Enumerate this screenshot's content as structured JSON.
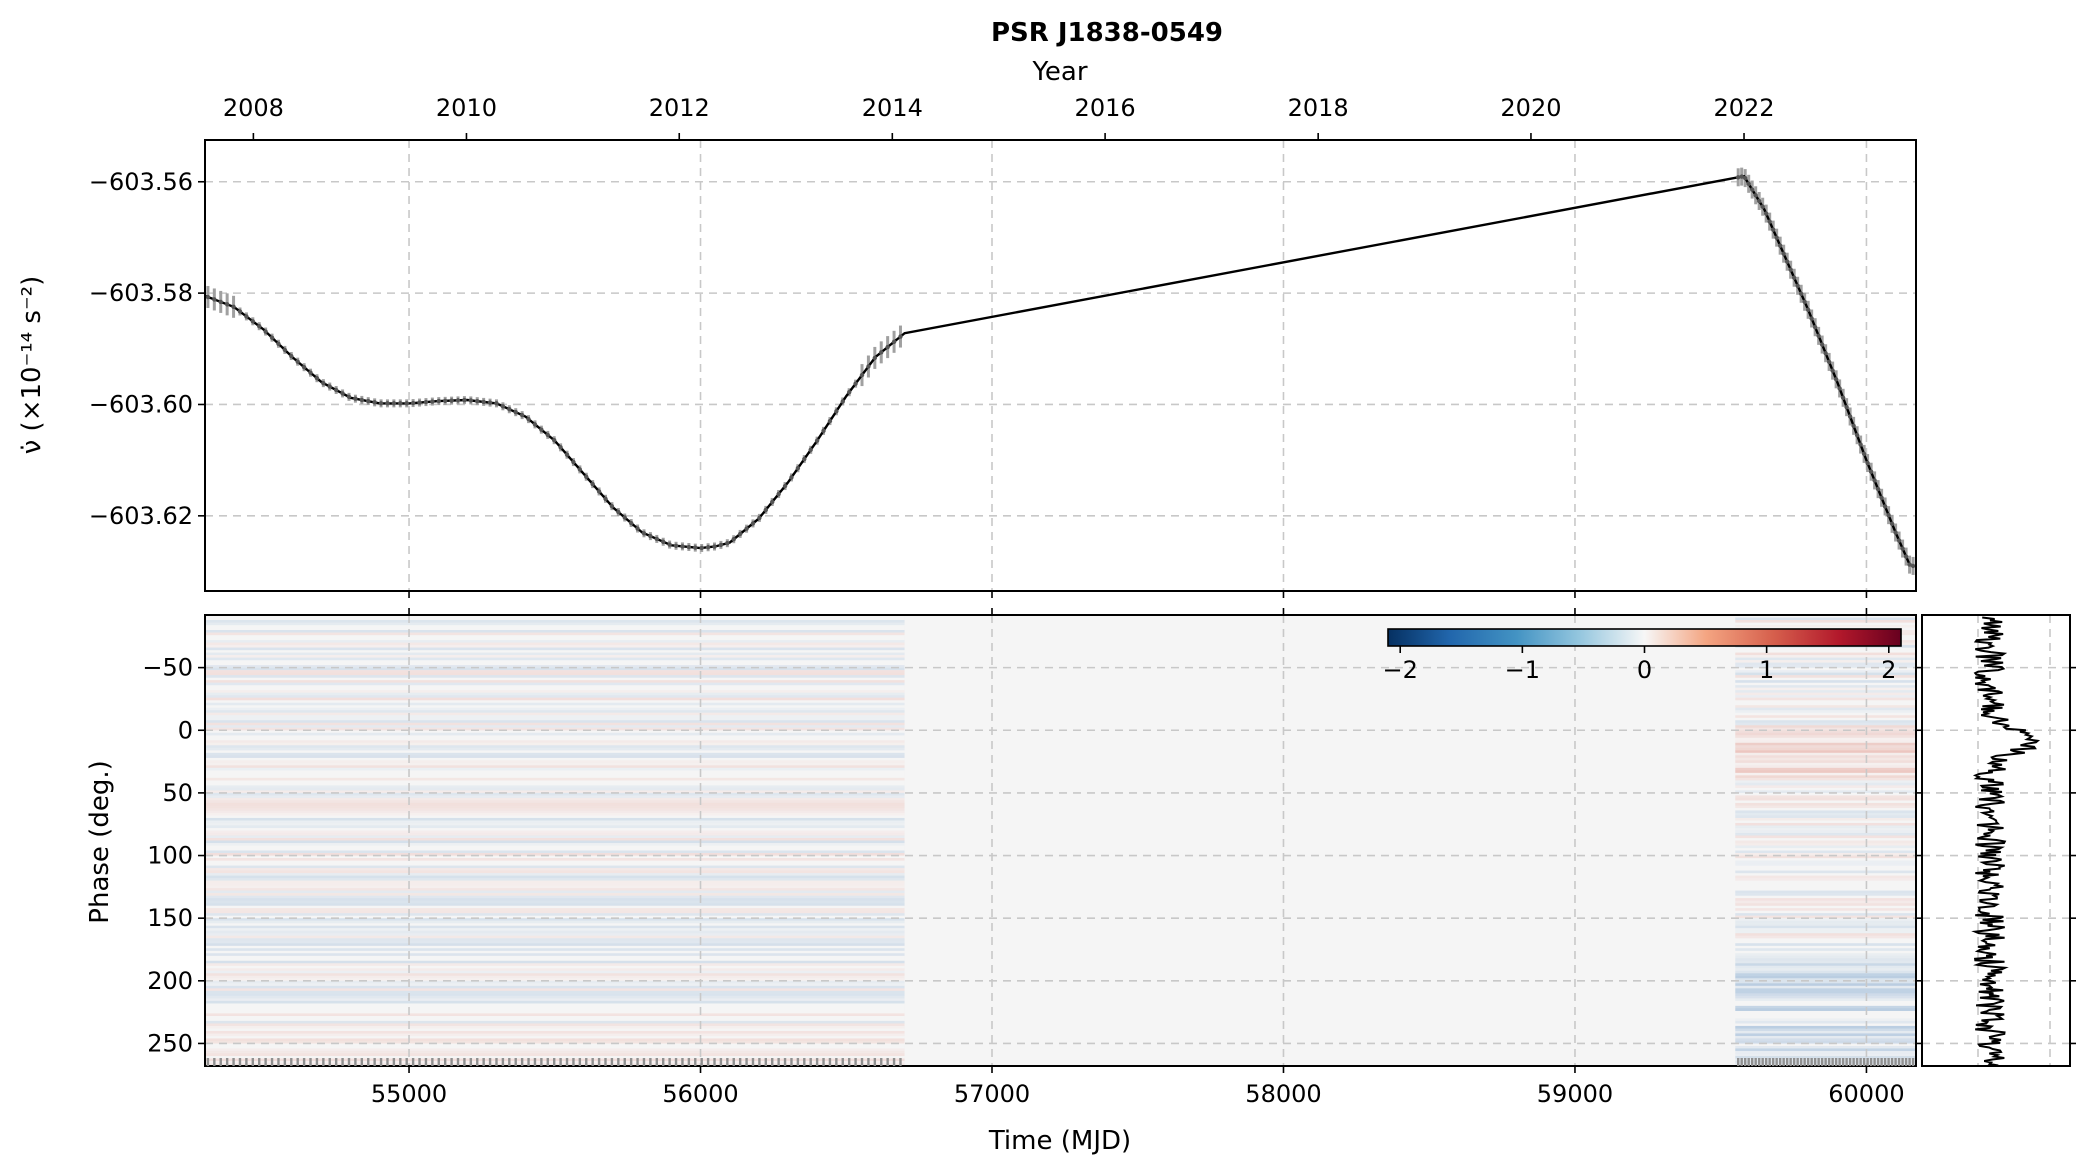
{
  "chart_data": [
    {
      "type": "line",
      "title": "PSR J1838-0549",
      "ylabel": "ν̇ (×10⁻¹⁴ s⁻²)",
      "top_xlabel": "Year",
      "xlim": [
        54300,
        60170
      ],
      "ylim": [
        -603.6335,
        -603.5525
      ],
      "x_ticks": [
        55000,
        56000,
        57000,
        58000,
        59000,
        60000
      ],
      "y_ticks": [
        -603.56,
        -603.58,
        -603.6,
        -603.62
      ],
      "y_tick_labels": [
        "−603.56",
        "−603.58",
        "−603.60",
        "−603.62"
      ],
      "year_ticks": [
        {
          "label": "2008",
          "mjd": 54466
        },
        {
          "label": "2010",
          "mjd": 55197
        },
        {
          "label": "2012",
          "mjd": 55927
        },
        {
          "label": "2014",
          "mjd": 56658
        },
        {
          "label": "2016",
          "mjd": 57388
        },
        {
          "label": "2018",
          "mjd": 58119
        },
        {
          "label": "2020",
          "mjd": 58849
        },
        {
          "label": "2022",
          "mjd": 59580
        }
      ],
      "grid": true,
      "series": [
        {
          "color": "#000000",
          "x": [
            54300,
            54400,
            54500,
            54600,
            54700,
            54800,
            54900,
            55000,
            55100,
            55200,
            55300,
            55400,
            55500,
            55600,
            55700,
            55800,
            55900,
            56000,
            56050,
            56100,
            56200,
            56300,
            56400,
            56500,
            56600,
            56700,
            59580,
            59650,
            59700,
            59800,
            59900,
            60000,
            60100,
            60150
          ],
          "y": [
            -603.5805,
            -603.5825,
            -603.5865,
            -603.5915,
            -603.596,
            -603.5988,
            -603.5998,
            -603.5998,
            -603.5994,
            -603.5992,
            -603.5998,
            -603.6022,
            -603.6065,
            -603.6125,
            -603.6185,
            -603.623,
            -603.6253,
            -603.6258,
            -603.6255,
            -603.6248,
            -603.6205,
            -603.614,
            -603.6065,
            -603.5985,
            -603.5915,
            -603.5872,
            -603.559,
            -603.565,
            -603.571,
            -603.583,
            -603.596,
            -603.61,
            -603.623,
            -603.629
          ]
        }
      ],
      "error_bars_color": "#a0a0a0"
    },
    {
      "type": "heatmap",
      "xlabel": "Time (MJD)",
      "ylabel": "Phase (deg.)",
      "xlim": [
        54300,
        60170
      ],
      "ylim": [
        -92,
        268
      ],
      "x_ticks": [
        55000,
        56000,
        57000,
        58000,
        59000,
        60000
      ],
      "x_tick_labels": [
        "55000",
        "56000",
        "57000",
        "58000",
        "59000",
        "60000"
      ],
      "y_ticks": [
        -50,
        0,
        50,
        100,
        150,
        200,
        250
      ],
      "y_tick_labels": [
        "−50",
        "0",
        "50",
        "100",
        "150",
        "200",
        "250"
      ],
      "colormap": "RdBu_r",
      "colorbar": {
        "min": -2.1,
        "max": 2.1,
        "ticks": [
          -2,
          -1,
          0,
          1,
          2
        ],
        "tick_labels": [
          "−2",
          "−1",
          "0",
          "1",
          "2"
        ],
        "placement": "top-right"
      },
      "observation_ranges": [
        [
          54300,
          56700
        ],
        [
          59550,
          60170
        ]
      ],
      "grid": true
    },
    {
      "type": "line",
      "description_axis": "profile",
      "ylim": [
        -92,
        268
      ],
      "peak_phase": 8,
      "color": "#000000"
    }
  ]
}
